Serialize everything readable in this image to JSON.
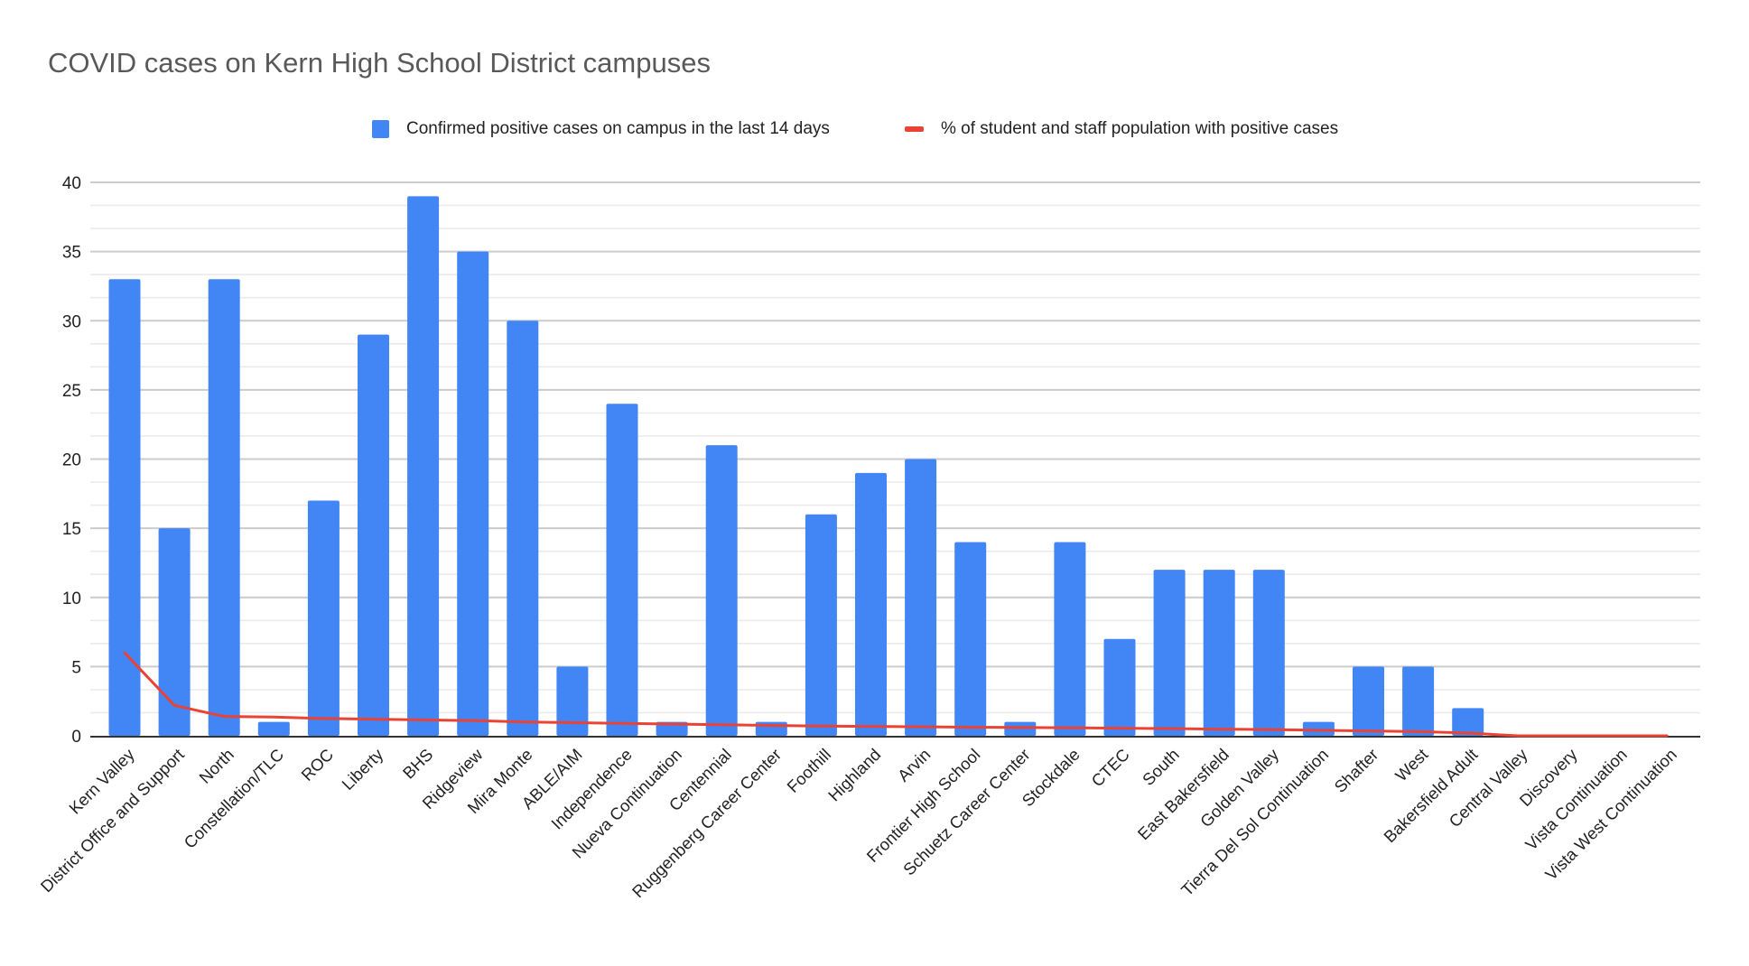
{
  "chart_data": {
    "type": "bar",
    "title": "COVID cases on Kern High School District campuses",
    "xlabel": "",
    "ylabel": "",
    "ylim": [
      0,
      40
    ],
    "yticks": [
      "0",
      "5",
      "10",
      "15",
      "20",
      "25",
      "30",
      "35",
      "40"
    ],
    "grid": true,
    "legend_position": "top",
    "categories": [
      "Kern Valley",
      "District Office and Support",
      "North",
      "Constellation/TLC",
      "ROC",
      "Liberty",
      "BHS",
      "Ridgeview",
      "Mira Monte",
      "ABLE/AIM",
      "Independence",
      "Nueva Continuation",
      "Centennial",
      "Ruggenberg Career Center",
      "Foothill",
      "Highland",
      "Arvin",
      "Frontier High School",
      "Schuetz Career Center",
      "Stockdale",
      "CTEC",
      "South",
      "East Bakersfield",
      "Golden Valley",
      "Tierra Del Sol Continuation",
      "Shafter",
      "West",
      "Bakersfield Adult",
      "Central Valley",
      "Discovery",
      "Vista Continuation",
      "Vista West Continuation"
    ],
    "series": [
      {
        "name": "Confirmed positive cases on campus in the last 14 days",
        "type": "bar",
        "color": "#4285f4",
        "values": [
          33,
          15,
          33,
          1,
          17,
          29,
          39,
          35,
          30,
          5,
          24,
          1,
          21,
          1,
          16,
          19,
          20,
          14,
          1,
          14,
          7,
          12,
          12,
          12,
          1,
          5,
          5,
          2,
          0,
          0,
          0,
          0
        ]
      },
      {
        "name": "% of student and staff population with positive cases",
        "type": "line",
        "color": "#ea4335",
        "values": [
          6.0,
          2.2,
          1.4,
          1.35,
          1.25,
          1.2,
          1.15,
          1.1,
          1.0,
          0.95,
          0.9,
          0.85,
          0.8,
          0.75,
          0.7,
          0.68,
          0.65,
          0.62,
          0.6,
          0.58,
          0.55,
          0.52,
          0.48,
          0.45,
          0.4,
          0.35,
          0.3,
          0.2,
          0.0,
          0.0,
          0.0,
          0.0
        ]
      }
    ]
  }
}
